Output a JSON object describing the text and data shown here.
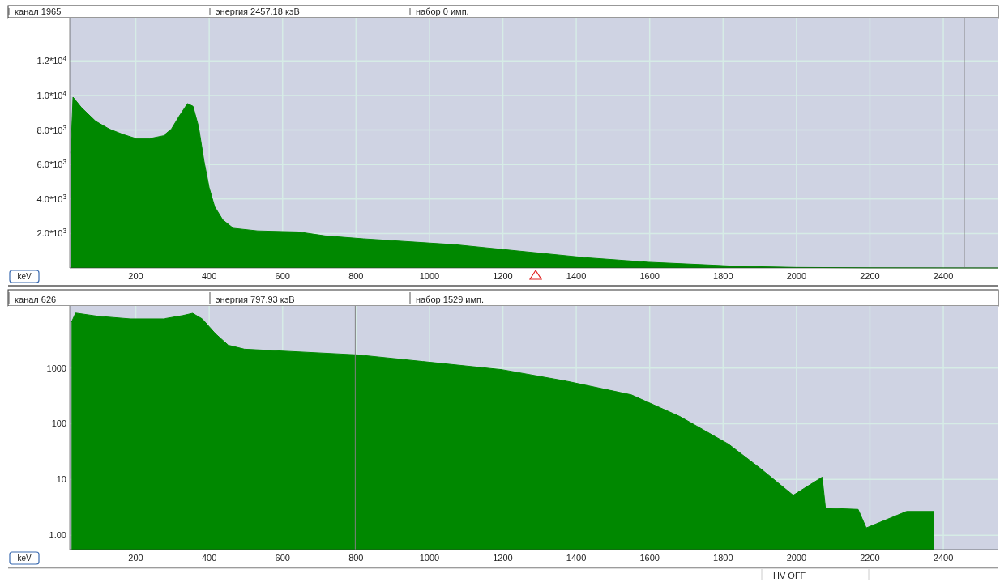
{
  "chart_data": [
    {
      "type": "area",
      "xlabel": "keV",
      "annotations": [
        "канал 1965",
        "энергия 2457.18 кэВ",
        "набор    0 имп."
      ],
      "x": [
        23,
        29,
        52,
        91,
        128,
        165,
        201,
        238,
        275,
        297,
        319,
        341,
        356,
        371,
        386,
        400,
        415,
        437,
        466,
        532,
        643,
        716,
        820,
        1069,
        1422,
        1598,
        1775,
        1833,
        2000,
        2200,
        2400,
        2550
      ],
      "series": [
        {
          "color": "#008800",
          "values": [
            6650,
            9900,
            9300,
            8500,
            8050,
            7740,
            7500,
            7500,
            7660,
            8050,
            8820,
            9530,
            9370,
            8200,
            6190,
            4650,
            3550,
            2790,
            2300,
            2150,
            2090,
            1860,
            1690,
            1350,
            600,
            330,
            160,
            100,
            30,
            10,
            5,
            0
          ]
        }
      ],
      "xlim": [
        20,
        2550
      ],
      "xticks": [
        200,
        400,
        600,
        800,
        1000,
        1200,
        1400,
        1600,
        1800,
        2000,
        2200,
        2400
      ],
      "ylim": [
        0,
        14500
      ],
      "yticks": [
        {
          "value": 2000,
          "label": "2.0*10$^{3}$"
        },
        {
          "value": 4000,
          "label": "4.0*10$^{3}$"
        },
        {
          "value": 6000,
          "label": "6.0*10$^{3}$"
        },
        {
          "value": 8000,
          "label": "8.0*10$^{3}$"
        },
        {
          "value": 10000,
          "label": "1.0*10$^{4}$"
        },
        {
          "value": 12000,
          "label": "1.2*10$^{4}$"
        }
      ],
      "ref_lines": [
        {
          "axis": "x",
          "value": 2457.18,
          "color": "#808080"
        }
      ],
      "grid": true
    },
    {
      "type": "area",
      "xlabel": "keV",
      "log": true,
      "annotations": [
        "канал 626",
        "энергия 797.93 кэВ",
        "набор  1529 имп.",
        "HV OFF"
      ],
      "x": [
        25,
        36,
        97,
        185,
        275,
        328,
        355,
        381,
        417,
        452,
        496,
        629,
        805,
        981,
        1197,
        1374,
        1550,
        1682,
        1815,
        1903,
        1991,
        2070,
        2079,
        2168,
        2190,
        2300,
        2375
      ],
      "series": [
        {
          "color": "#008800",
          "values": [
            6650,
            9700,
            8500,
            7620,
            7620,
            8750,
            9600,
            7620,
            4140,
            2570,
            2180,
            1970,
            1720,
            1310,
            935,
            580,
            330,
            135,
            43,
            15.5,
            5.2,
            11,
            3.06,
            2.9,
            1.35,
            2.67,
            2.67
          ]
        }
      ],
      "xlim": [
        20,
        2550
      ],
      "xticks": [
        200,
        400,
        600,
        800,
        1000,
        1200,
        1400,
        1600,
        1800,
        2000,
        2200,
        2400
      ],
      "ylim": [
        0.55,
        13000
      ],
      "yticks": [
        {
          "value": 1,
          "label": "1.00"
        },
        10,
        100,
        1000
      ],
      "ref_lines": [
        {
          "axis": "x",
          "value": 797.93,
          "color": "#808080"
        }
      ],
      "grid": true
    }
  ]
}
